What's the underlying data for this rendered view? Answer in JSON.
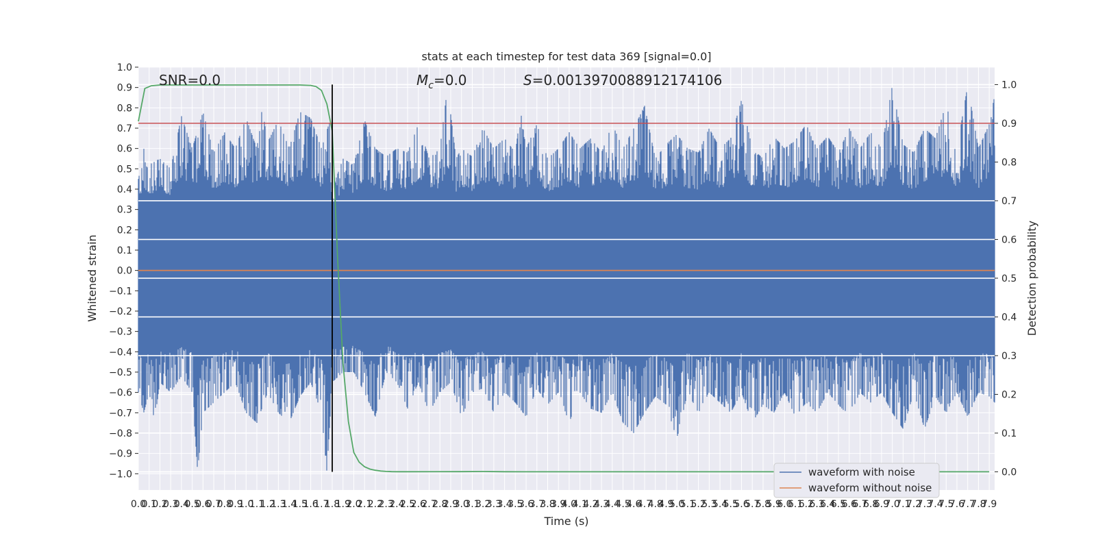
{
  "chart_data": {
    "type": "line",
    "title": "stats at each timestep for test data 369 [signal=0.0]",
    "xlabel": "Time (s)",
    "ylabel_left": "Whitened strain",
    "ylabel_right": "Detection probability",
    "xlim": [
      0.0,
      7.95
    ],
    "ylim_left": [
      -1.08,
      1.0
    ],
    "ylim_right": [
      -0.047,
      1.045
    ],
    "grid": true,
    "legend_position": "lower-right",
    "x_ticks": [
      "0.0",
      "0.1",
      "0.2",
      "0.3",
      "0.4",
      "0.5",
      "0.6",
      "0.7",
      "0.8",
      "0.9",
      "1.0",
      "1.1",
      "1.2",
      "1.3",
      "1.4",
      "1.5",
      "1.6",
      "1.7",
      "1.8",
      "1.9",
      "2.0",
      "2.1",
      "2.2",
      "2.3",
      "2.4",
      "2.5",
      "2.6",
      "2.7",
      "2.8",
      "2.9",
      "3.0",
      "3.1",
      "3.2",
      "3.3",
      "3.4",
      "3.5",
      "3.6",
      "3.7",
      "3.8",
      "3.9",
      "4.0",
      "4.1",
      "4.2",
      "4.3",
      "4.4",
      "4.5",
      "4.6",
      "4.7",
      "4.8",
      "4.9",
      "5.0",
      "5.1",
      "5.2",
      "5.3",
      "5.4",
      "5.5",
      "5.6",
      "5.7",
      "5.8",
      "5.9",
      "6.0",
      "6.1",
      "6.2",
      "6.3",
      "6.4",
      "6.5",
      "6.6",
      "6.7",
      "6.8",
      "6.9",
      "7.0",
      "7.1",
      "7.2",
      "7.3",
      "7.4",
      "7.5",
      "7.6",
      "7.7",
      "7.8",
      "7.9"
    ],
    "y_ticks_left": [
      "1.0",
      "0.9",
      "0.8",
      "0.7",
      "0.6",
      "0.5",
      "0.4",
      "0.3",
      "0.2",
      "0.1",
      "0.0",
      "−0.1",
      "−0.2",
      "−0.3",
      "−0.4",
      "−0.5",
      "−0.6",
      "−0.7",
      "−0.8",
      "−0.9",
      "−1.0"
    ],
    "y_ticks_right": [
      "1.0",
      "0.9",
      "0.8",
      "0.7",
      "0.6",
      "0.5",
      "0.4",
      "0.3",
      "0.2",
      "0.1",
      "0.0"
    ],
    "annotations": {
      "snr": "SNR=0.0",
      "mc_symbol": "M",
      "mc_subscript": "c",
      "mc_value": "=0.0",
      "s_symbol": "S",
      "s_value": "=0.0013970088912174106"
    },
    "threshold_probability": 0.9,
    "vertical_marker_time": 1.8,
    "series": [
      {
        "name": "waveform with noise",
        "axis": "left",
        "color": "#4c72b0",
        "style": "dense noisy waveform",
        "upper_envelope": [
          [
            0.0,
            0.45
          ],
          [
            0.05,
            0.6
          ],
          [
            0.1,
            0.52
          ],
          [
            0.2,
            0.55
          ],
          [
            0.3,
            0.5
          ],
          [
            0.4,
            0.76
          ],
          [
            0.5,
            0.6
          ],
          [
            0.6,
            0.78
          ],
          [
            0.7,
            0.58
          ],
          [
            0.8,
            0.68
          ],
          [
            0.9,
            0.6
          ],
          [
            1.0,
            0.75
          ],
          [
            1.1,
            0.6
          ],
          [
            1.15,
            0.8
          ],
          [
            1.2,
            0.63
          ],
          [
            1.3,
            0.74
          ],
          [
            1.4,
            0.6
          ],
          [
            1.5,
            0.78
          ],
          [
            1.6,
            0.75
          ],
          [
            1.7,
            0.6
          ],
          [
            1.78,
            0.74
          ],
          [
            1.8,
            0.4
          ],
          [
            1.9,
            0.55
          ],
          [
            2.0,
            0.52
          ],
          [
            2.1,
            0.74
          ],
          [
            2.2,
            0.6
          ],
          [
            2.3,
            0.56
          ],
          [
            2.4,
            0.6
          ],
          [
            2.5,
            0.58
          ],
          [
            2.6,
            0.72
          ],
          [
            2.7,
            0.55
          ],
          [
            2.8,
            0.6
          ],
          [
            2.87,
            0.9
          ],
          [
            2.95,
            0.55
          ],
          [
            3.0,
            0.6
          ],
          [
            3.1,
            0.56
          ],
          [
            3.2,
            0.7
          ],
          [
            3.3,
            0.6
          ],
          [
            3.4,
            0.65
          ],
          [
            3.5,
            0.58
          ],
          [
            3.55,
            0.78
          ],
          [
            3.6,
            0.6
          ],
          [
            3.7,
            0.72
          ],
          [
            3.8,
            0.55
          ],
          [
            3.9,
            0.6
          ],
          [
            4.0,
            0.68
          ],
          [
            4.1,
            0.6
          ],
          [
            4.2,
            0.65
          ],
          [
            4.3,
            0.58
          ],
          [
            4.4,
            0.72
          ],
          [
            4.5,
            0.6
          ],
          [
            4.6,
            0.7
          ],
          [
            4.7,
            0.81
          ],
          [
            4.8,
            0.55
          ],
          [
            4.9,
            0.62
          ],
          [
            5.0,
            0.67
          ],
          [
            5.1,
            0.6
          ],
          [
            5.2,
            0.58
          ],
          [
            5.3,
            0.7
          ],
          [
            5.4,
            0.6
          ],
          [
            5.5,
            0.65
          ],
          [
            5.6,
            0.84
          ],
          [
            5.7,
            0.6
          ],
          [
            5.8,
            0.55
          ],
          [
            5.9,
            0.66
          ],
          [
            6.0,
            0.6
          ],
          [
            6.1,
            0.64
          ],
          [
            6.2,
            0.72
          ],
          [
            6.3,
            0.6
          ],
          [
            6.4,
            0.66
          ],
          [
            6.5,
            0.58
          ],
          [
            6.6,
            0.7
          ],
          [
            6.7,
            0.6
          ],
          [
            6.8,
            0.68
          ],
          [
            6.9,
            0.6
          ],
          [
            7.0,
            0.91
          ],
          [
            7.1,
            0.62
          ],
          [
            7.2,
            0.58
          ],
          [
            7.3,
            0.7
          ],
          [
            7.4,
            0.65
          ],
          [
            7.5,
            0.82
          ],
          [
            7.6,
            0.6
          ],
          [
            7.7,
            0.91
          ],
          [
            7.8,
            0.6
          ],
          [
            7.9,
            0.72
          ],
          [
            7.95,
            0.86
          ]
        ],
        "lower_envelope": [
          [
            0.0,
            -0.6
          ],
          [
            0.05,
            -0.7
          ],
          [
            0.1,
            -0.6
          ],
          [
            0.15,
            -0.74
          ],
          [
            0.2,
            -0.55
          ],
          [
            0.3,
            -0.6
          ],
          [
            0.4,
            -0.52
          ],
          [
            0.5,
            -0.6
          ],
          [
            0.55,
            -0.99
          ],
          [
            0.6,
            -0.7
          ],
          [
            0.7,
            -0.65
          ],
          [
            0.8,
            -0.6
          ],
          [
            0.9,
            -0.55
          ],
          [
            1.0,
            -0.7
          ],
          [
            1.1,
            -0.75
          ],
          [
            1.2,
            -0.6
          ],
          [
            1.3,
            -0.7
          ],
          [
            1.4,
            -0.75
          ],
          [
            1.5,
            -0.62
          ],
          [
            1.6,
            -0.55
          ],
          [
            1.7,
            -0.7
          ],
          [
            1.75,
            -0.99
          ],
          [
            1.8,
            -0.55
          ],
          [
            1.9,
            -0.5
          ],
          [
            2.0,
            -0.5
          ],
          [
            2.1,
            -0.6
          ],
          [
            2.2,
            -0.72
          ],
          [
            2.3,
            -0.5
          ],
          [
            2.4,
            -0.55
          ],
          [
            2.5,
            -0.68
          ],
          [
            2.6,
            -0.55
          ],
          [
            2.7,
            -0.7
          ],
          [
            2.8,
            -0.6
          ],
          [
            2.9,
            -0.55
          ],
          [
            3.0,
            -0.72
          ],
          [
            3.1,
            -0.6
          ],
          [
            3.2,
            -0.58
          ],
          [
            3.3,
            -0.7
          ],
          [
            3.4,
            -0.6
          ],
          [
            3.5,
            -0.65
          ],
          [
            3.6,
            -0.72
          ],
          [
            3.7,
            -0.58
          ],
          [
            3.8,
            -0.66
          ],
          [
            3.9,
            -0.6
          ],
          [
            4.0,
            -0.75
          ],
          [
            4.1,
            -0.6
          ],
          [
            4.2,
            -0.68
          ],
          [
            4.3,
            -0.7
          ],
          [
            4.4,
            -0.6
          ],
          [
            4.5,
            -0.75
          ],
          [
            4.6,
            -0.8
          ],
          [
            4.7,
            -0.7
          ],
          [
            4.8,
            -0.62
          ],
          [
            4.9,
            -0.66
          ],
          [
            5.0,
            -0.83
          ],
          [
            5.1,
            -0.6
          ],
          [
            5.2,
            -0.7
          ],
          [
            5.3,
            -0.6
          ],
          [
            5.4,
            -0.65
          ],
          [
            5.5,
            -0.7
          ],
          [
            5.6,
            -0.6
          ],
          [
            5.7,
            -0.75
          ],
          [
            5.8,
            -0.66
          ],
          [
            5.9,
            -0.7
          ],
          [
            6.0,
            -0.6
          ],
          [
            6.1,
            -0.72
          ],
          [
            6.2,
            -0.65
          ],
          [
            6.3,
            -0.7
          ],
          [
            6.4,
            -0.6
          ],
          [
            6.5,
            -0.66
          ],
          [
            6.6,
            -0.72
          ],
          [
            6.7,
            -0.6
          ],
          [
            6.8,
            -0.65
          ],
          [
            6.9,
            -0.6
          ],
          [
            7.0,
            -0.7
          ],
          [
            7.1,
            -0.78
          ],
          [
            7.2,
            -0.6
          ],
          [
            7.3,
            -0.78
          ],
          [
            7.4,
            -0.62
          ],
          [
            7.5,
            -0.7
          ],
          [
            7.6,
            -0.6
          ],
          [
            7.7,
            -0.72
          ],
          [
            7.8,
            -0.6
          ],
          [
            7.9,
            -0.62
          ],
          [
            7.95,
            -0.65
          ]
        ]
      },
      {
        "name": "waveform without noise",
        "axis": "left",
        "color": "#dd8452",
        "x": [
          0.0,
          7.95
        ],
        "y": [
          0.0,
          0.0
        ]
      },
      {
        "axis": "right",
        "color": "#55a868",
        "x": [
          0.0,
          0.06,
          0.12,
          0.2,
          0.4,
          0.6,
          0.8,
          1.0,
          1.2,
          1.4,
          1.5,
          1.6,
          1.65,
          1.7,
          1.75,
          1.8,
          1.85,
          1.9,
          1.95,
          2.0,
          2.05,
          2.1,
          2.15,
          2.2,
          2.25,
          2.3,
          2.35,
          2.4,
          2.5,
          3.0,
          3.2,
          3.4,
          3.6,
          4.0,
          5.0,
          6.0,
          7.0,
          7.9
        ],
        "y": [
          0.905,
          0.99,
          0.997,
          0.999,
          0.999,
          0.999,
          0.999,
          0.999,
          0.999,
          0.999,
          0.999,
          0.998,
          0.995,
          0.985,
          0.95,
          0.88,
          0.55,
          0.28,
          0.13,
          0.05,
          0.025,
          0.013,
          0.007,
          0.004,
          0.002,
          0.001,
          0.0005,
          0.0003,
          0.0002,
          0.0004,
          0.0008,
          0.0002,
          0.0001,
          0.0001,
          0.0001,
          0.0001,
          0.0001,
          0.0001
        ]
      }
    ]
  }
}
